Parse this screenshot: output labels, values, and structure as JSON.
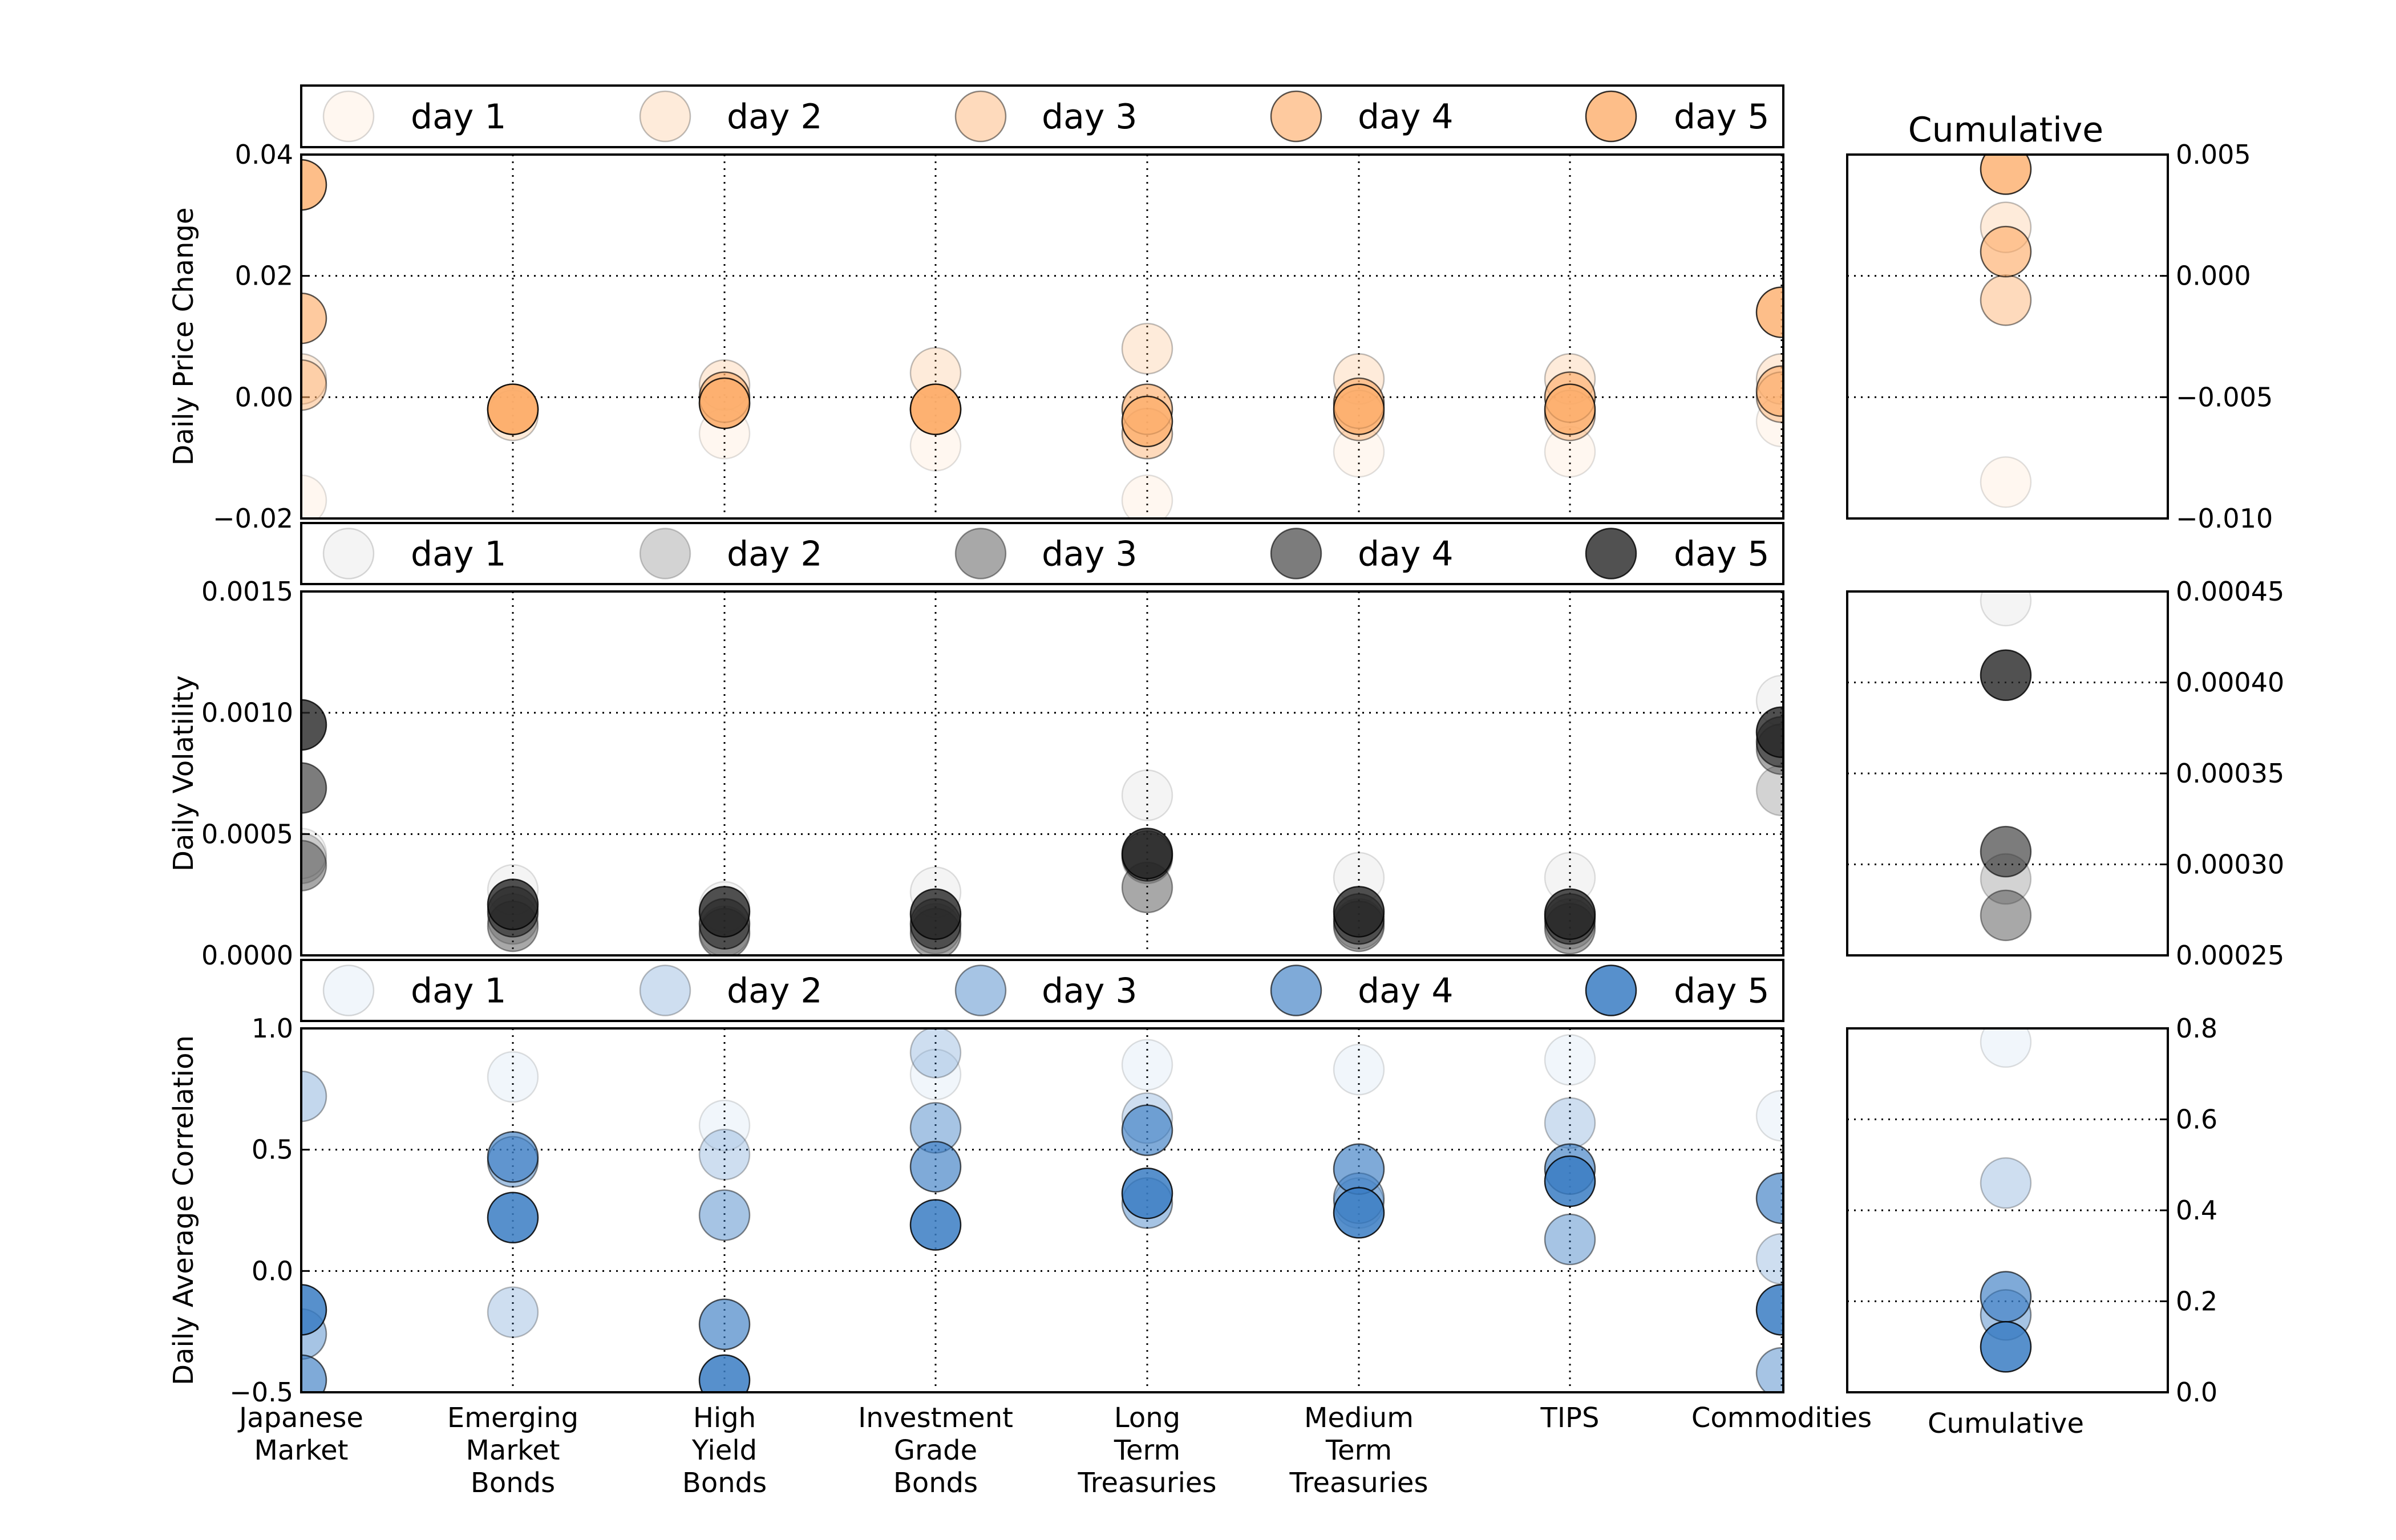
{
  "chart_data": {
    "type": "scatter",
    "categories": [
      [
        "Japanese",
        "Market"
      ],
      [
        "Emerging",
        "Market",
        "Bonds"
      ],
      [
        "High",
        "Yield",
        "Bonds"
      ],
      [
        "Investment",
        "Grade",
        "Bonds"
      ],
      [
        "Long",
        "Term",
        "Treasuries"
      ],
      [
        "Medium",
        "Term",
        "Treasuries"
      ],
      [
        "TIPS"
      ],
      [
        "Commodities"
      ]
    ],
    "cumulative_title": "Cumulative",
    "cumulative_xlabel": "Cumulative",
    "panels": [
      {
        "id": "price",
        "ylabel": "Daily Price Change",
        "ylim": [
          -0.02,
          0.04
        ],
        "yticks": [
          "−0.02",
          "0.00",
          "0.02",
          "0.04"
        ],
        "ytick_values": [
          -0.02,
          0.0,
          0.02,
          0.04
        ],
        "color": "#fdae6b",
        "series": [
          {
            "name": "day 1",
            "alpha": 0.1,
            "values": [
              -0.017,
              -0.002,
              -0.006,
              -0.008,
              -0.017,
              -0.009,
              -0.009,
              -0.004
            ]
          },
          {
            "name": "day 2",
            "alpha": 0.25,
            "values": [
              0.003,
              -0.003,
              0.002,
              0.004,
              0.008,
              0.003,
              0.003,
              0.003
            ]
          },
          {
            "name": "day 3",
            "alpha": 0.45,
            "values": [
              0.002,
              -0.002,
              -0.001,
              -0.002,
              -0.006,
              -0.003,
              -0.003,
              0.0
            ]
          },
          {
            "name": "day 4",
            "alpha": 0.65,
            "values": [
              0.013,
              -0.002,
              0.0,
              -0.002,
              -0.002,
              -0.001,
              0.0,
              0.001
            ]
          },
          {
            "name": "day 5",
            "alpha": 0.8,
            "values": [
              0.035,
              -0.002,
              -0.001,
              -0.002,
              -0.004,
              -0.002,
              -0.002,
              0.014
            ]
          }
        ],
        "cumulative": {
          "ylim": [
            -0.01,
            0.005
          ],
          "yticks": [
            "−0.010",
            "−0.005",
            "0.000",
            "0.005"
          ],
          "ytick_values": [
            -0.01,
            -0.005,
            0.0,
            0.005
          ],
          "values": [
            -0.0085,
            0.002,
            -0.001,
            0.001,
            0.0044
          ]
        }
      },
      {
        "id": "volatility",
        "ylabel": "Daily Volatility",
        "ylim": [
          0.0,
          0.0015
        ],
        "yticks": [
          "0.0000",
          "0.0005",
          "0.0010",
          "0.0015"
        ],
        "ytick_values": [
          0.0,
          0.0005,
          0.001,
          0.0015
        ],
        "color": "#252525",
        "series": [
          {
            "name": "day 1",
            "alpha": 0.05,
            "values": [
              0.00042,
              0.00027,
              0.0002,
              0.00026,
              0.00066,
              0.00032,
              0.00032,
              0.00105
            ]
          },
          {
            "name": "day 2",
            "alpha": 0.2,
            "values": [
              0.0004,
              0.00015,
              0.0001,
              0.00011,
              0.0004,
              0.00013,
              0.00013,
              0.00068
            ]
          },
          {
            "name": "day 3",
            "alpha": 0.4,
            "values": [
              0.00037,
              0.00012,
              9e-05,
              9e-05,
              0.00028,
              0.00012,
              0.00011,
              0.00085
            ]
          },
          {
            "name": "day 4",
            "alpha": 0.6,
            "values": [
              0.00069,
              0.00018,
              0.00013,
              0.00013,
              0.00041,
              0.00015,
              0.00015,
              0.00088
            ]
          },
          {
            "name": "day 5",
            "alpha": 0.8,
            "values": [
              0.00095,
              0.00021,
              0.00018,
              0.00017,
              0.00042,
              0.00018,
              0.00017,
              0.00092
            ]
          }
        ],
        "cumulative": {
          "ylim": [
            0.00025,
            0.00045
          ],
          "yticks": [
            "0.00025",
            "0.00030",
            "0.00035",
            "0.00040",
            "0.00045"
          ],
          "ytick_values": [
            0.00025,
            0.0003,
            0.00035,
            0.0004,
            0.00045
          ],
          "values": [
            0.000445,
            0.000292,
            0.000272,
            0.000307,
            0.000404
          ]
        }
      },
      {
        "id": "correlation",
        "ylabel": "Daily Average Correlation",
        "ylim": [
          -0.5,
          1.0
        ],
        "yticks": [
          "−0.5",
          "0.0",
          "0.5",
          "1.0"
        ],
        "ytick_values": [
          -0.5,
          0.0,
          0.5,
          1.0
        ],
        "color": "#3a7dc3",
        "series": [
          {
            "name": "day 1",
            "alpha": 0.07,
            "values": [
              0.72,
              0.8,
              0.6,
              0.81,
              0.85,
              0.83,
              0.87,
              0.64
            ]
          },
          {
            "name": "day 2",
            "alpha": 0.25,
            "values": [
              0.72,
              -0.17,
              0.48,
              0.9,
              0.63,
              0.28,
              0.61,
              0.05
            ]
          },
          {
            "name": "day 3",
            "alpha": 0.45,
            "values": [
              -0.26,
              0.45,
              0.23,
              0.59,
              0.28,
              0.3,
              0.13,
              -0.42
            ]
          },
          {
            "name": "day 4",
            "alpha": 0.65,
            "values": [
              -0.45,
              0.47,
              -0.22,
              0.43,
              0.58,
              0.42,
              0.42,
              0.3
            ]
          },
          {
            "name": "day 5",
            "alpha": 0.85,
            "values": [
              -0.16,
              0.22,
              -0.45,
              0.19,
              0.32,
              0.24,
              0.37,
              -0.16
            ]
          }
        ],
        "cumulative": {
          "ylim": [
            0.0,
            0.8
          ],
          "yticks": [
            "0.0",
            "0.2",
            "0.4",
            "0.6",
            "0.8"
          ],
          "ytick_values": [
            0.0,
            0.2,
            0.4,
            0.6,
            0.8
          ],
          "values": [
            0.77,
            0.46,
            0.17,
            0.21,
            0.1
          ]
        }
      }
    ]
  }
}
